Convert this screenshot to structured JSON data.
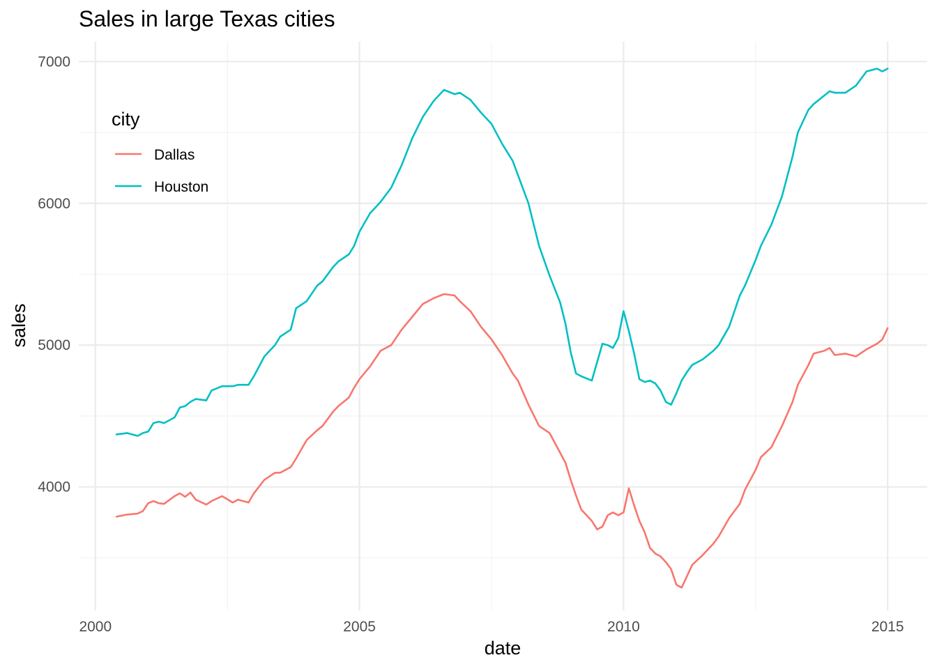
{
  "chart_data": {
    "type": "line",
    "title": "Sales in large Texas cities",
    "xlabel": "date",
    "ylabel": "sales",
    "xlim": [
      2000.0,
      2015.0
    ],
    "ylim": [
      3300,
      7000
    ],
    "x_ticks": [
      2000,
      2005,
      2010,
      2015
    ],
    "x_tick_labels": [
      "2000",
      "2005",
      "2010",
      "2015"
    ],
    "y_ticks": [
      4000,
      5000,
      6000,
      7000
    ],
    "y_tick_labels": [
      "4000",
      "5000",
      "6000",
      "7000"
    ],
    "grid": true,
    "legend": {
      "title": "city",
      "position": "top-left-inside"
    },
    "series": [
      {
        "name": "Dallas",
        "color": "#F8766D",
        "x": [
          2000.4,
          2000.6,
          2000.8,
          2000.9,
          2001.0,
          2001.1,
          2001.2,
          2001.3,
          2001.5,
          2001.6,
          2001.7,
          2001.8,
          2001.9,
          2002.1,
          2002.2,
          2002.4,
          2002.6,
          2002.7,
          2002.9,
          2003.0,
          2003.2,
          2003.4,
          2003.5,
          2003.7,
          2003.8,
          2004.0,
          2004.2,
          2004.3,
          2004.5,
          2004.6,
          2004.8,
          2004.9,
          2005.0,
          2005.2,
          2005.4,
          2005.6,
          2005.8,
          2006.0,
          2006.2,
          2006.4,
          2006.6,
          2006.8,
          2006.9,
          2007.1,
          2007.3,
          2007.5,
          2007.7,
          2007.9,
          2008.0,
          2008.2,
          2008.4,
          2008.6,
          2008.8,
          2008.9,
          2009.0,
          2009.1,
          2009.2,
          2009.4,
          2009.5,
          2009.6,
          2009.7,
          2009.8,
          2009.9,
          2010.0,
          2010.1,
          2010.2,
          2010.3,
          2010.4,
          2010.5,
          2010.6,
          2010.7,
          2010.8,
          2010.9,
          2011.0,
          2011.1,
          2011.2,
          2011.3,
          2011.5,
          2011.6,
          2011.7,
          2011.8,
          2012.0,
          2012.2,
          2012.3,
          2012.5,
          2012.6,
          2012.8,
          2013.0,
          2013.2,
          2013.3,
          2013.5,
          2013.6,
          2013.8,
          2013.9,
          2014.0,
          2014.2,
          2014.4,
          2014.6,
          2014.8,
          2014.9,
          2015.0
        ],
        "values": [
          3790,
          3805,
          3812,
          3830,
          3885,
          3900,
          3885,
          3880,
          3935,
          3955,
          3930,
          3960,
          3910,
          3875,
          3900,
          3935,
          3890,
          3910,
          3890,
          3955,
          4050,
          4100,
          4100,
          4140,
          4200,
          4330,
          4400,
          4430,
          4530,
          4570,
          4630,
          4700,
          4760,
          4850,
          4960,
          5000,
          5110,
          5200,
          5290,
          5330,
          5360,
          5350,
          5310,
          5240,
          5130,
          5040,
          4930,
          4800,
          4750,
          4580,
          4430,
          4380,
          4240,
          4170,
          4050,
          3940,
          3840,
          3760,
          3700,
          3720,
          3800,
          3820,
          3800,
          3820,
          3990,
          3870,
          3760,
          3680,
          3570,
          3530,
          3510,
          3470,
          3420,
          3310,
          3290,
          3370,
          3450,
          3520,
          3560,
          3600,
          3650,
          3780,
          3880,
          3980,
          4120,
          4210,
          4280,
          4430,
          4600,
          4720,
          4860,
          4940,
          4960,
          4980,
          4930,
          4940,
          4920,
          4970,
          5010,
          5040,
          5120
        ]
      },
      {
        "name": "Houston",
        "color": "#00BFC4",
        "x": [
          2000.4,
          2000.6,
          2000.8,
          2000.9,
          2001.0,
          2001.1,
          2001.2,
          2001.3,
          2001.5,
          2001.6,
          2001.7,
          2001.8,
          2001.9,
          2002.1,
          2002.2,
          2002.4,
          2002.6,
          2002.7,
          2002.9,
          2003.0,
          2003.2,
          2003.4,
          2003.5,
          2003.7,
          2003.8,
          2004.0,
          2004.2,
          2004.3,
          2004.5,
          2004.6,
          2004.8,
          2004.9,
          2005.0,
          2005.2,
          2005.4,
          2005.6,
          2005.8,
          2006.0,
          2006.2,
          2006.4,
          2006.6,
          2006.8,
          2006.9,
          2007.1,
          2007.3,
          2007.5,
          2007.7,
          2007.9,
          2008.0,
          2008.2,
          2008.4,
          2008.6,
          2008.8,
          2008.9,
          2009.0,
          2009.1,
          2009.2,
          2009.4,
          2009.5,
          2009.6,
          2009.7,
          2009.8,
          2009.9,
          2010.0,
          2010.1,
          2010.2,
          2010.3,
          2010.4,
          2010.5,
          2010.6,
          2010.7,
          2010.8,
          2010.9,
          2011.0,
          2011.1,
          2011.2,
          2011.3,
          2011.5,
          2011.6,
          2011.7,
          2011.8,
          2012.0,
          2012.2,
          2012.3,
          2012.5,
          2012.6,
          2012.8,
          2013.0,
          2013.2,
          2013.3,
          2013.5,
          2013.6,
          2013.8,
          2013.9,
          2014.0,
          2014.2,
          2014.4,
          2014.6,
          2014.8,
          2014.9,
          2015.0
        ],
        "values": [
          4370,
          4380,
          4360,
          4380,
          4390,
          4450,
          4460,
          4450,
          4490,
          4560,
          4570,
          4600,
          4620,
          4610,
          4680,
          4710,
          4710,
          4720,
          4720,
          4780,
          4920,
          5000,
          5060,
          5110,
          5260,
          5310,
          5420,
          5450,
          5550,
          5590,
          5640,
          5700,
          5800,
          5930,
          6010,
          6110,
          6270,
          6460,
          6610,
          6720,
          6800,
          6770,
          6780,
          6730,
          6640,
          6560,
          6420,
          6300,
          6200,
          6000,
          5700,
          5490,
          5300,
          5150,
          4950,
          4800,
          4780,
          4750,
          4880,
          5010,
          5000,
          4980,
          5050,
          5240,
          5100,
          4940,
          4760,
          4740,
          4750,
          4730,
          4680,
          4600,
          4580,
          4660,
          4750,
          4810,
          4860,
          4900,
          4930,
          4960,
          5000,
          5130,
          5350,
          5420,
          5600,
          5700,
          5850,
          6050,
          6330,
          6500,
          6660,
          6700,
          6760,
          6790,
          6780,
          6780,
          6830,
          6930,
          6950,
          6930,
          6950
        ]
      }
    ]
  }
}
